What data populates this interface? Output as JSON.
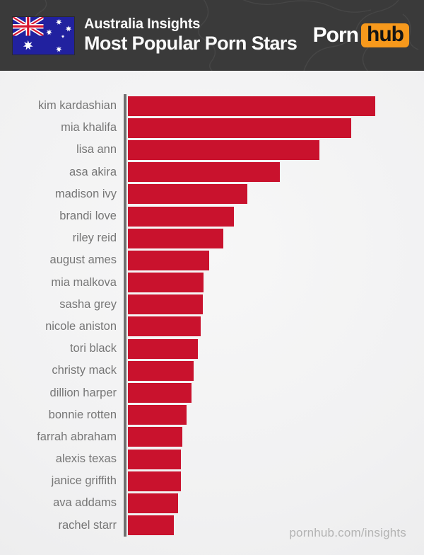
{
  "header": {
    "title_line1": "Australia Insights",
    "title_line2": "Most Popular Porn Stars",
    "flag_icon": "australia-flag",
    "logo": {
      "part1": "Porn",
      "part2": "hub"
    }
  },
  "footer": {
    "watermark": "pornhub.com/insights"
  },
  "colors": {
    "header_bg": "#3a3a3a",
    "bar_red": "#c9122d",
    "logo_orange": "#f7991c",
    "label_gray": "#767676",
    "axis_gray": "#6f6f6f",
    "chart_bg": "#f2f2f2",
    "flag_blue": "#21219f",
    "flag_red": "#d8142f"
  },
  "chart_data": {
    "type": "bar",
    "orientation": "horizontal",
    "title": "Australia Insights — Most Popular Porn Stars",
    "xlabel": "",
    "ylabel": "",
    "value_unit": "relative popularity index (longest bar = 100)",
    "xlim": [
      0,
      100
    ],
    "grid": false,
    "legend": false,
    "categories": [
      "kim kardashian",
      "mia khalifa",
      "lisa ann",
      "asa akira",
      "madison ivy",
      "brandi love",
      "riley reid",
      "august ames",
      "mia malkova",
      "sasha grey",
      "nicole aniston",
      "tori black",
      "christy mack",
      "dillion harper",
      "bonnie rotten",
      "farrah abraham",
      "alexis texas",
      "janice griffith",
      "ava addams",
      "rachel starr"
    ],
    "values": [
      100,
      90.3,
      77.4,
      61.4,
      48.3,
      42.9,
      38.6,
      32.9,
      30.6,
      30.3,
      29.4,
      28.3,
      26.6,
      25.7,
      23.7,
      22.0,
      21.4,
      21.4,
      20.3,
      18.6
    ]
  }
}
